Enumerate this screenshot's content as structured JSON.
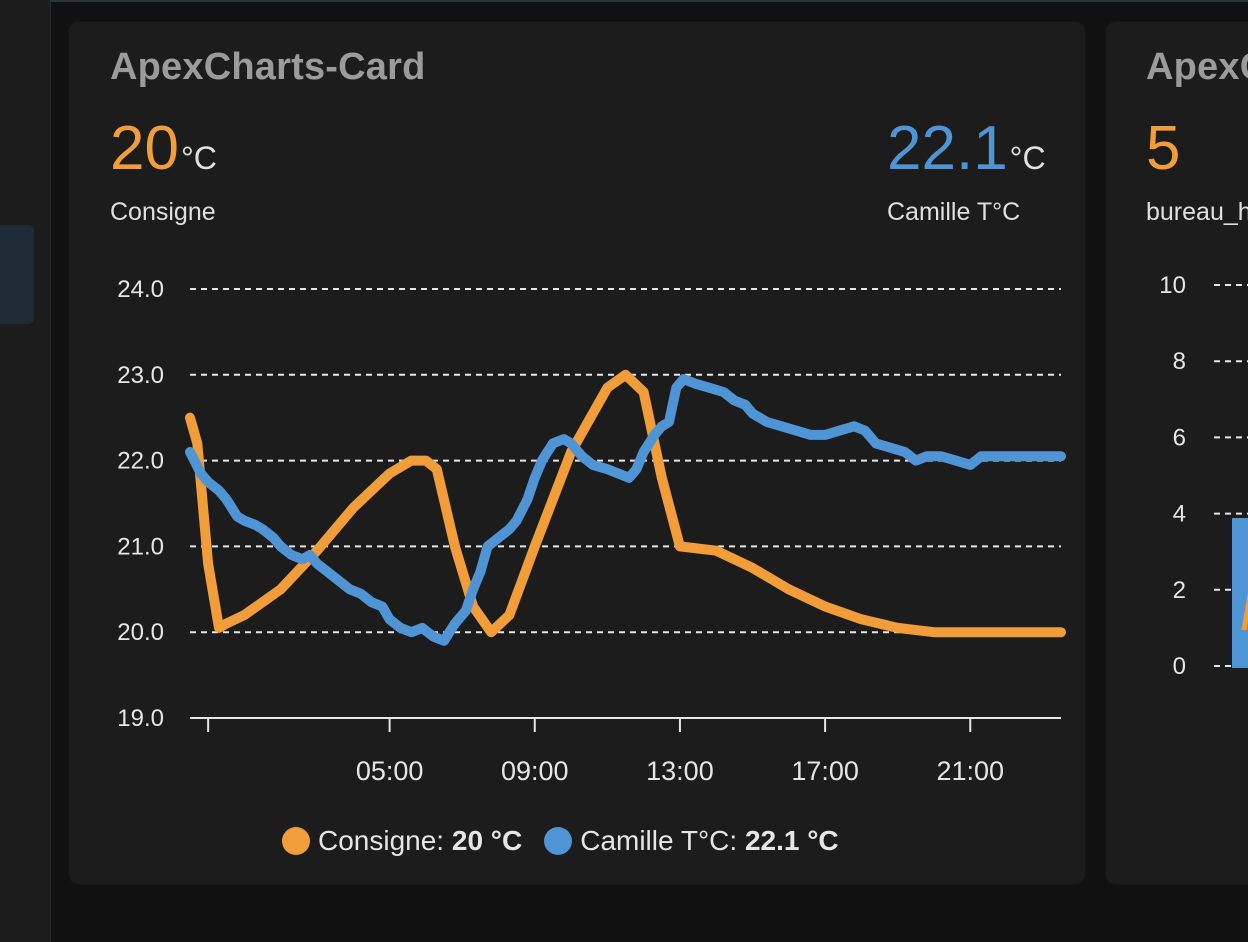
{
  "colors": {
    "orange": "#f09d3a",
    "blue": "#4f95d6"
  },
  "main_card": {
    "title": "ApexCharts-Card",
    "stat_left": {
      "value": "20",
      "unit": "°C",
      "label": "Consigne"
    },
    "stat_right": {
      "value": "22.1",
      "unit": "°C",
      "label": "Camille T°C"
    },
    "legend": [
      {
        "name": "Consigne:",
        "value": "20 °C"
      },
      {
        "name": "Camille T°C:",
        "value": "22.1 °C"
      }
    ]
  },
  "second_card": {
    "title": "ApexC",
    "value": "5",
    "label": "bureau_h",
    "y_ticks": [
      "10",
      "8",
      "6",
      "4",
      "2",
      "0"
    ]
  },
  "chart_data": {
    "type": "line",
    "x_unit": "hours",
    "xlim": [
      -0.5,
      23.5
    ],
    "ylim": [
      19,
      24
    ],
    "y_ticks": [
      "24.0",
      "23.0",
      "22.0",
      "21.0",
      "20.0",
      "19.0"
    ],
    "x_ticks": [
      {
        "label": "05:00",
        "x": 5
      },
      {
        "label": "09:00",
        "x": 9
      },
      {
        "label": "13:00",
        "x": 13
      },
      {
        "label": "17:00",
        "x": 17
      },
      {
        "label": "21:00",
        "x": 21
      }
    ],
    "grid": true,
    "series": [
      {
        "name": "Consigne",
        "color": "#f09d3a",
        "points": [
          [
            -0.5,
            22.5
          ],
          [
            -0.3,
            22.2
          ],
          [
            0,
            20.8
          ],
          [
            0.3,
            20.05
          ],
          [
            0.5,
            20.1
          ],
          [
            1,
            20.2
          ],
          [
            2,
            20.5
          ],
          [
            3,
            20.95
          ],
          [
            4,
            21.45
          ],
          [
            5,
            21.85
          ],
          [
            5.6,
            22.0
          ],
          [
            6,
            22.0
          ],
          [
            6.3,
            21.9
          ],
          [
            6.8,
            21.0
          ],
          [
            7.3,
            20.3
          ],
          [
            7.8,
            20.0
          ],
          [
            8.3,
            20.2
          ],
          [
            9,
            21.0
          ],
          [
            10,
            22.1
          ],
          [
            11,
            22.85
          ],
          [
            11.5,
            23.0
          ],
          [
            12,
            22.8
          ],
          [
            12.5,
            21.8
          ],
          [
            13,
            21.0
          ],
          [
            14,
            20.95
          ],
          [
            15,
            20.75
          ],
          [
            16,
            20.5
          ],
          [
            17,
            20.3
          ],
          [
            18,
            20.15
          ],
          [
            19,
            20.05
          ],
          [
            20,
            20.0
          ],
          [
            21,
            20.0
          ],
          [
            22,
            20.0
          ],
          [
            23.5,
            20.0
          ]
        ]
      },
      {
        "name": "Camille T°C",
        "color": "#4f95d6",
        "points": [
          [
            -0.5,
            22.1
          ],
          [
            -0.2,
            21.85
          ],
          [
            0,
            21.75
          ],
          [
            0.3,
            21.65
          ],
          [
            0.5,
            21.55
          ],
          [
            0.8,
            21.35
          ],
          [
            1,
            21.3
          ],
          [
            1.3,
            21.25
          ],
          [
            1.5,
            21.2
          ],
          [
            1.8,
            21.1
          ],
          [
            2,
            21.0
          ],
          [
            2.3,
            20.9
          ],
          [
            2.6,
            20.85
          ],
          [
            2.8,
            20.9
          ],
          [
            3,
            20.8
          ],
          [
            3.3,
            20.7
          ],
          [
            3.6,
            20.6
          ],
          [
            3.9,
            20.5
          ],
          [
            4.2,
            20.45
          ],
          [
            4.5,
            20.35
          ],
          [
            4.8,
            20.3
          ],
          [
            5,
            20.15
          ],
          [
            5.3,
            20.05
          ],
          [
            5.6,
            20.0
          ],
          [
            5.9,
            20.05
          ],
          [
            6.2,
            19.95
          ],
          [
            6.5,
            19.9
          ],
          [
            6.8,
            20.1
          ],
          [
            7.1,
            20.25
          ],
          [
            7.3,
            20.5
          ],
          [
            7.5,
            20.7
          ],
          [
            7.7,
            21.0
          ],
          [
            8,
            21.1
          ],
          [
            8.3,
            21.2
          ],
          [
            8.5,
            21.3
          ],
          [
            8.8,
            21.55
          ],
          [
            9,
            21.8
          ],
          [
            9.2,
            22.0
          ],
          [
            9.5,
            22.2
          ],
          [
            9.8,
            22.25
          ],
          [
            10,
            22.2
          ],
          [
            10.3,
            22.05
          ],
          [
            10.6,
            21.95
          ],
          [
            11,
            21.9
          ],
          [
            11.3,
            21.85
          ],
          [
            11.6,
            21.8
          ],
          [
            11.8,
            21.9
          ],
          [
            12,
            22.1
          ],
          [
            12.3,
            22.3
          ],
          [
            12.5,
            22.4
          ],
          [
            12.7,
            22.45
          ],
          [
            12.9,
            22.85
          ],
          [
            13.1,
            22.95
          ],
          [
            13.4,
            22.9
          ],
          [
            13.8,
            22.85
          ],
          [
            14.2,
            22.8
          ],
          [
            14.5,
            22.7
          ],
          [
            14.8,
            22.65
          ],
          [
            15,
            22.55
          ],
          [
            15.4,
            22.45
          ],
          [
            15.8,
            22.4
          ],
          [
            16.2,
            22.35
          ],
          [
            16.6,
            22.3
          ],
          [
            17,
            22.3
          ],
          [
            17.4,
            22.35
          ],
          [
            17.8,
            22.4
          ],
          [
            18.1,
            22.35
          ],
          [
            18.4,
            22.2
          ],
          [
            18.8,
            22.15
          ],
          [
            19.2,
            22.1
          ],
          [
            19.5,
            22.0
          ],
          [
            19.8,
            22.05
          ],
          [
            20.2,
            22.05
          ],
          [
            20.6,
            22.0
          ],
          [
            21,
            21.95
          ],
          [
            21.3,
            22.05
          ],
          [
            22,
            22.05
          ],
          [
            23.5,
            22.05
          ]
        ]
      }
    ]
  }
}
